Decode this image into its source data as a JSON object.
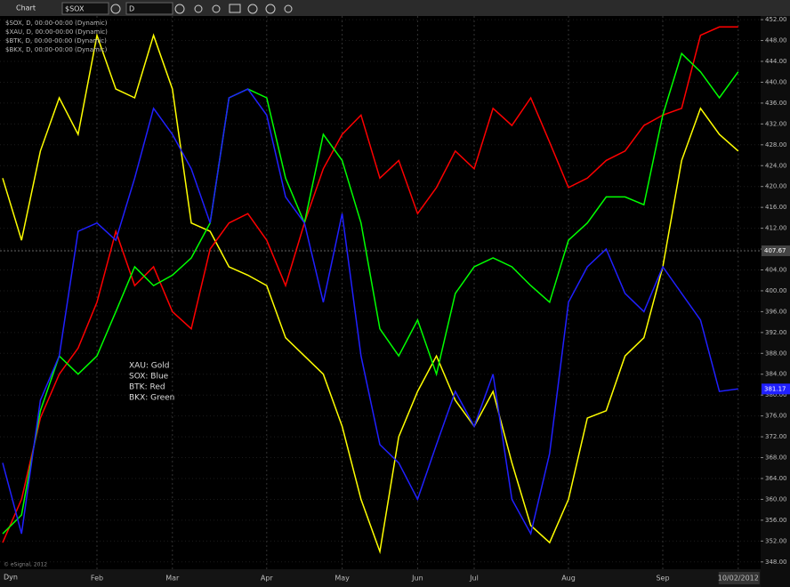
{
  "toolbar": {
    "title": "Chart",
    "symbol": "$SOX",
    "interval": "D"
  },
  "chart_data": {
    "type": "line",
    "categories": [
      null,
      null,
      null,
      null,
      null,
      "Feb",
      null,
      null,
      null,
      "Mar",
      null,
      null,
      null,
      null,
      "Apr",
      null,
      null,
      null,
      "May",
      null,
      null,
      null,
      "Jun",
      null,
      null,
      "Jul",
      null,
      null,
      null,
      null,
      "Aug",
      null,
      null,
      null,
      null,
      "Sep",
      null,
      null,
      null,
      "10/02/2012"
    ],
    "series": [
      {
        "name": "$SOX, D, 00:00-00:00 (Dynamic)",
        "color": "#2020ff",
        "values": [
          367,
          353.4,
          379,
          387.5,
          411.4,
          413,
          409.7,
          421.6,
          435,
          430,
          423.4,
          413,
          437,
          438.7,
          433.7,
          418,
          413,
          397.8,
          414.8,
          387.5,
          370.5,
          367,
          360,
          370.5,
          380.7,
          374,
          384,
          360,
          353.4,
          368.8,
          397.8,
          404.6,
          408,
          399.5,
          396,
          404.6,
          399.5,
          394.4,
          380.7,
          381.17
        ]
      },
      {
        "name": "$XAU, D, 00:00-00:00 (Dynamic)",
        "color": "#ffff00",
        "values": [
          421.6,
          409.7,
          426.8,
          437,
          430,
          449,
          438.7,
          437,
          449,
          438.7,
          413,
          411.4,
          404.6,
          403,
          401,
          391,
          387.5,
          384,
          374,
          360,
          350,
          372,
          380.7,
          387.5,
          379,
          374,
          380.7,
          367,
          355,
          351.7,
          360,
          375.6,
          377,
          387.5,
          391,
          404.6,
          425,
          435,
          430,
          426.8
        ]
      },
      {
        "name": "$BTK, D, 00:00-00:00 (Dynamic)",
        "color": "#ff0000",
        "values": [
          351.7,
          360,
          375.6,
          384,
          389,
          397.8,
          411.4,
          401,
          404.6,
          396,
          392.7,
          408,
          413,
          414.8,
          409.7,
          401,
          413,
          423.4,
          430,
          433.7,
          421.6,
          425,
          414.8,
          419.8,
          426.8,
          423.4,
          435,
          431.7,
          437,
          428.5,
          419.8,
          421.6,
          425,
          426.8,
          431.7,
          433.7,
          435,
          449,
          450.6,
          450.6
        ]
      },
      {
        "name": "$BKX, D, 00:00-00:00 (Dynamic)",
        "color": "#00ff00",
        "values": [
          353.4,
          357,
          377,
          387.5,
          384,
          387.5,
          396,
          404.6,
          401,
          403,
          406.3,
          413,
          437,
          438.7,
          437,
          421.6,
          413,
          430,
          425,
          413,
          392.7,
          387.5,
          394.4,
          384,
          399.5,
          404.6,
          406.3,
          404.6,
          401,
          397.8,
          409.7,
          413,
          418,
          418,
          416.5,
          433.7,
          445.5,
          442,
          437,
          442
        ]
      }
    ],
    "ylim": [
      346.6,
      452.7
    ],
    "yticks": [
      {
        "value": 348,
        "label": "348.00"
      },
      {
        "value": 352,
        "label": "352.00"
      },
      {
        "value": 356,
        "label": "356.00"
      },
      {
        "value": 360,
        "label": "360.00"
      },
      {
        "value": 364,
        "label": "364.00"
      },
      {
        "value": 368,
        "label": "368.00"
      },
      {
        "value": 372,
        "label": "372.00"
      },
      {
        "value": 376,
        "label": "376.00"
      },
      {
        "value": 380,
        "label": "380.00"
      },
      {
        "value": 384,
        "label": "384.00"
      },
      {
        "value": 388,
        "label": "388.00"
      },
      {
        "value": 392,
        "label": "392.00"
      },
      {
        "value": 396,
        "label": "396.00"
      },
      {
        "value": 400,
        "label": "400.00"
      },
      {
        "value": 404,
        "label": "404.00"
      },
      {
        "value": 408,
        "label": "408.00"
      },
      {
        "value": 412,
        "label": "412.00"
      },
      {
        "value": 416,
        "label": "416.00"
      },
      {
        "value": 420,
        "label": "420.00"
      },
      {
        "value": 424,
        "label": "424.00"
      },
      {
        "value": 428,
        "label": "428.00"
      },
      {
        "value": 432,
        "label": "432.00"
      },
      {
        "value": 436,
        "label": "436.00"
      },
      {
        "value": 440,
        "label": "440.00"
      },
      {
        "value": 444,
        "label": "444.00"
      },
      {
        "value": 448,
        "label": "448.00"
      },
      {
        "value": 452,
        "label": "452.00"
      }
    ],
    "crosshair_value": 407.67,
    "annotations": [
      "XAU: Gold",
      "SOX: Blue",
      "BTK: Red",
      "BKX: Green"
    ],
    "grid": true
  },
  "footer": {
    "copyright": "© eSignal, 2012",
    "mode": "Dyn"
  }
}
